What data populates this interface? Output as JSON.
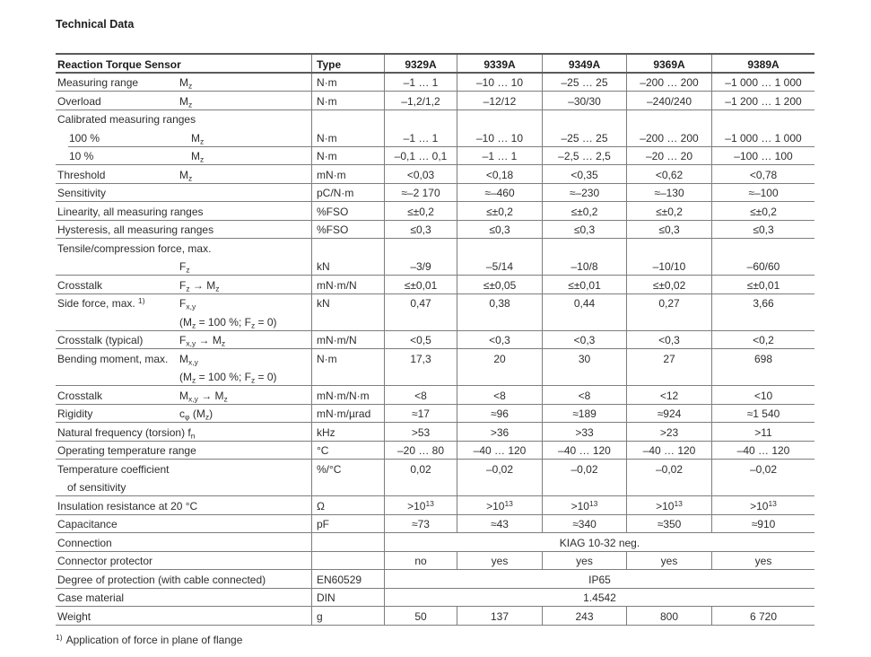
{
  "page": {
    "title": "Technical Data",
    "footnote_marker": "1)",
    "footnote_text": "Application of force in plane of flange"
  },
  "table": {
    "header": {
      "param_label": "Reaction Torque Sensor",
      "type_label": "Type",
      "models": [
        "9329A",
        "9339A",
        "9349A",
        "9369A",
        "9389A"
      ]
    },
    "rows": [
      {
        "label": "Measuring range",
        "symbol": "M_{z}",
        "unit": "N·m",
        "values": [
          "–1 … 1",
          "–10 … 10",
          "–25 … 25",
          "–200 … 200",
          "–1 000 … 1 000"
        ]
      },
      {
        "label": "Overload",
        "symbol": "M_{z}",
        "unit": "N·m",
        "values": [
          "–1,2/1,2",
          "–12/12",
          "–30/30",
          "–240/240",
          "–1 200 … 1 200"
        ]
      },
      {
        "label": "Calibrated measuring ranges",
        "no_border": true,
        "values": [
          "",
          "",
          "",
          "",
          ""
        ]
      },
      {
        "label": "100 %",
        "indent": true,
        "border_indent": true,
        "symbol": "M_{z}",
        "unit": "N·m",
        "values": [
          "–1 … 1",
          "–10 … 10",
          "–25 … 25",
          "–200 … 200",
          "–1 000 … 1 000"
        ]
      },
      {
        "label": "10 %",
        "indent": true,
        "symbol": "M_{z}",
        "unit": "N·m",
        "values": [
          "–0,1 … 0,1",
          "–1 … 1",
          "–2,5 … 2,5",
          "–20 … 20",
          "–100 … 100"
        ]
      },
      {
        "label": "Threshold",
        "symbol": "M_{z}",
        "unit": "mN·m",
        "values": [
          "<0,03",
          "<0,18",
          "<0,35",
          "<0,62",
          "<0,78"
        ]
      },
      {
        "label": "Sensitivity",
        "unit": "pC/N·m",
        "values": [
          "≈–2 170",
          "≈–460",
          "≈–230",
          "≈–130",
          "≈–100"
        ]
      },
      {
        "label": "Linearity, all measuring ranges",
        "unit": "%FSO",
        "values": [
          "≤±0,2",
          "≤±0,2",
          "≤±0,2",
          "≤±0,2",
          "≤±0,2"
        ]
      },
      {
        "label": "Hysteresis, all measuring ranges",
        "unit": "%FSO",
        "values": [
          "≤0,3",
          "≤0,3",
          "≤0,3",
          "≤0,3",
          "≤0,3"
        ]
      },
      {
        "label": "Tensile/compression force, max.",
        "no_border": true,
        "values": [
          "",
          "",
          "",
          "",
          ""
        ]
      },
      {
        "label": "",
        "symbol": "F_{z}",
        "unit": "kN",
        "values": [
          "–3/9",
          "–5/14",
          "–10/8",
          "–10/10",
          "–60/60"
        ]
      },
      {
        "label": "Crosstalk",
        "symbol": "F_{z} → M_{z}",
        "unit": "mN·m/N",
        "values": [
          "≤±0,01",
          "≤±0,05",
          "≤±0,01",
          "≤±0,02",
          "≤±0,01"
        ]
      },
      {
        "label": "Side force, max. ^{1)}",
        "symbol": "F_{x,y}",
        "symbol2": "(M_{z} = 100 %; F_{z} = 0)",
        "unit": "kN",
        "twoline": true,
        "values": [
          "0,47",
          "0,38",
          "0,44",
          "0,27",
          "3,66"
        ]
      },
      {
        "label": "Crosstalk (typical)",
        "symbol": "F_{x,y} → M_{z}",
        "unit": "mN·m/N",
        "values": [
          "<0,5",
          "<0,3",
          "<0,3",
          "<0,3",
          "<0,2"
        ]
      },
      {
        "label": "Bending moment, max.",
        "symbol": "M_{x,y}",
        "symbol2": "(M_{z} = 100 %; F_{z} = 0)",
        "unit": "N·m",
        "twoline": true,
        "values": [
          "17,3",
          "20",
          "30",
          "27",
          "698"
        ]
      },
      {
        "label": "Crosstalk",
        "symbol": "M_{x,y} → M_{z}",
        "unit": "mN·m/N·m",
        "values": [
          "<8",
          "<8",
          "<8",
          "<12",
          "<10"
        ]
      },
      {
        "label": "Rigidity",
        "symbol": "c_{φ} (M_{z})",
        "unit": "mN·m/µrad",
        "values": [
          "≈17",
          "≈96",
          "≈189",
          "≈924",
          "≈1 540"
        ]
      },
      {
        "label": "Natural frequency (torsion) f_{n}",
        "unit": "kHz",
        "values": [
          ">53",
          ">36",
          ">33",
          ">23",
          ">11"
        ]
      },
      {
        "label": "Operating temperature range",
        "unit": "°C",
        "values": [
          "–20 … 80",
          "–40 … 120",
          "–40 … 120",
          "–40 … 120",
          "–40 … 120"
        ]
      },
      {
        "label": "Temperature coefficient",
        "label2": "of sensitivity",
        "unit": "%/°C",
        "twoline": true,
        "values": [
          "0,02",
          "–0,02",
          "–0,02",
          "–0,02",
          "–0,02"
        ]
      },
      {
        "label": "Insulation resistance at 20 °C",
        "unit": "Ω",
        "values": [
          ">10^{13}",
          ">10^{13}",
          ">10^{13}",
          ">10^{13}",
          ">10^{13}"
        ]
      },
      {
        "label": "Capacitance",
        "unit": "pF",
        "values": [
          "≈73",
          "≈43",
          "≈340",
          "≈350",
          "≈910"
        ]
      },
      {
        "label": "Connection",
        "span": "KIAG 10-32 neg."
      },
      {
        "label": "Connector protector",
        "values": [
          "no",
          "yes",
          "yes",
          "yes",
          "yes"
        ]
      },
      {
        "label": "Degree of protection (with cable connected)",
        "unit": "EN60529",
        "span": "IP65"
      },
      {
        "label": "Case material",
        "unit": "DIN",
        "span": "1.4542"
      },
      {
        "label": "Weight",
        "unit": "g",
        "values": [
          "50",
          "137",
          "243",
          "800",
          "6 720"
        ]
      }
    ]
  }
}
